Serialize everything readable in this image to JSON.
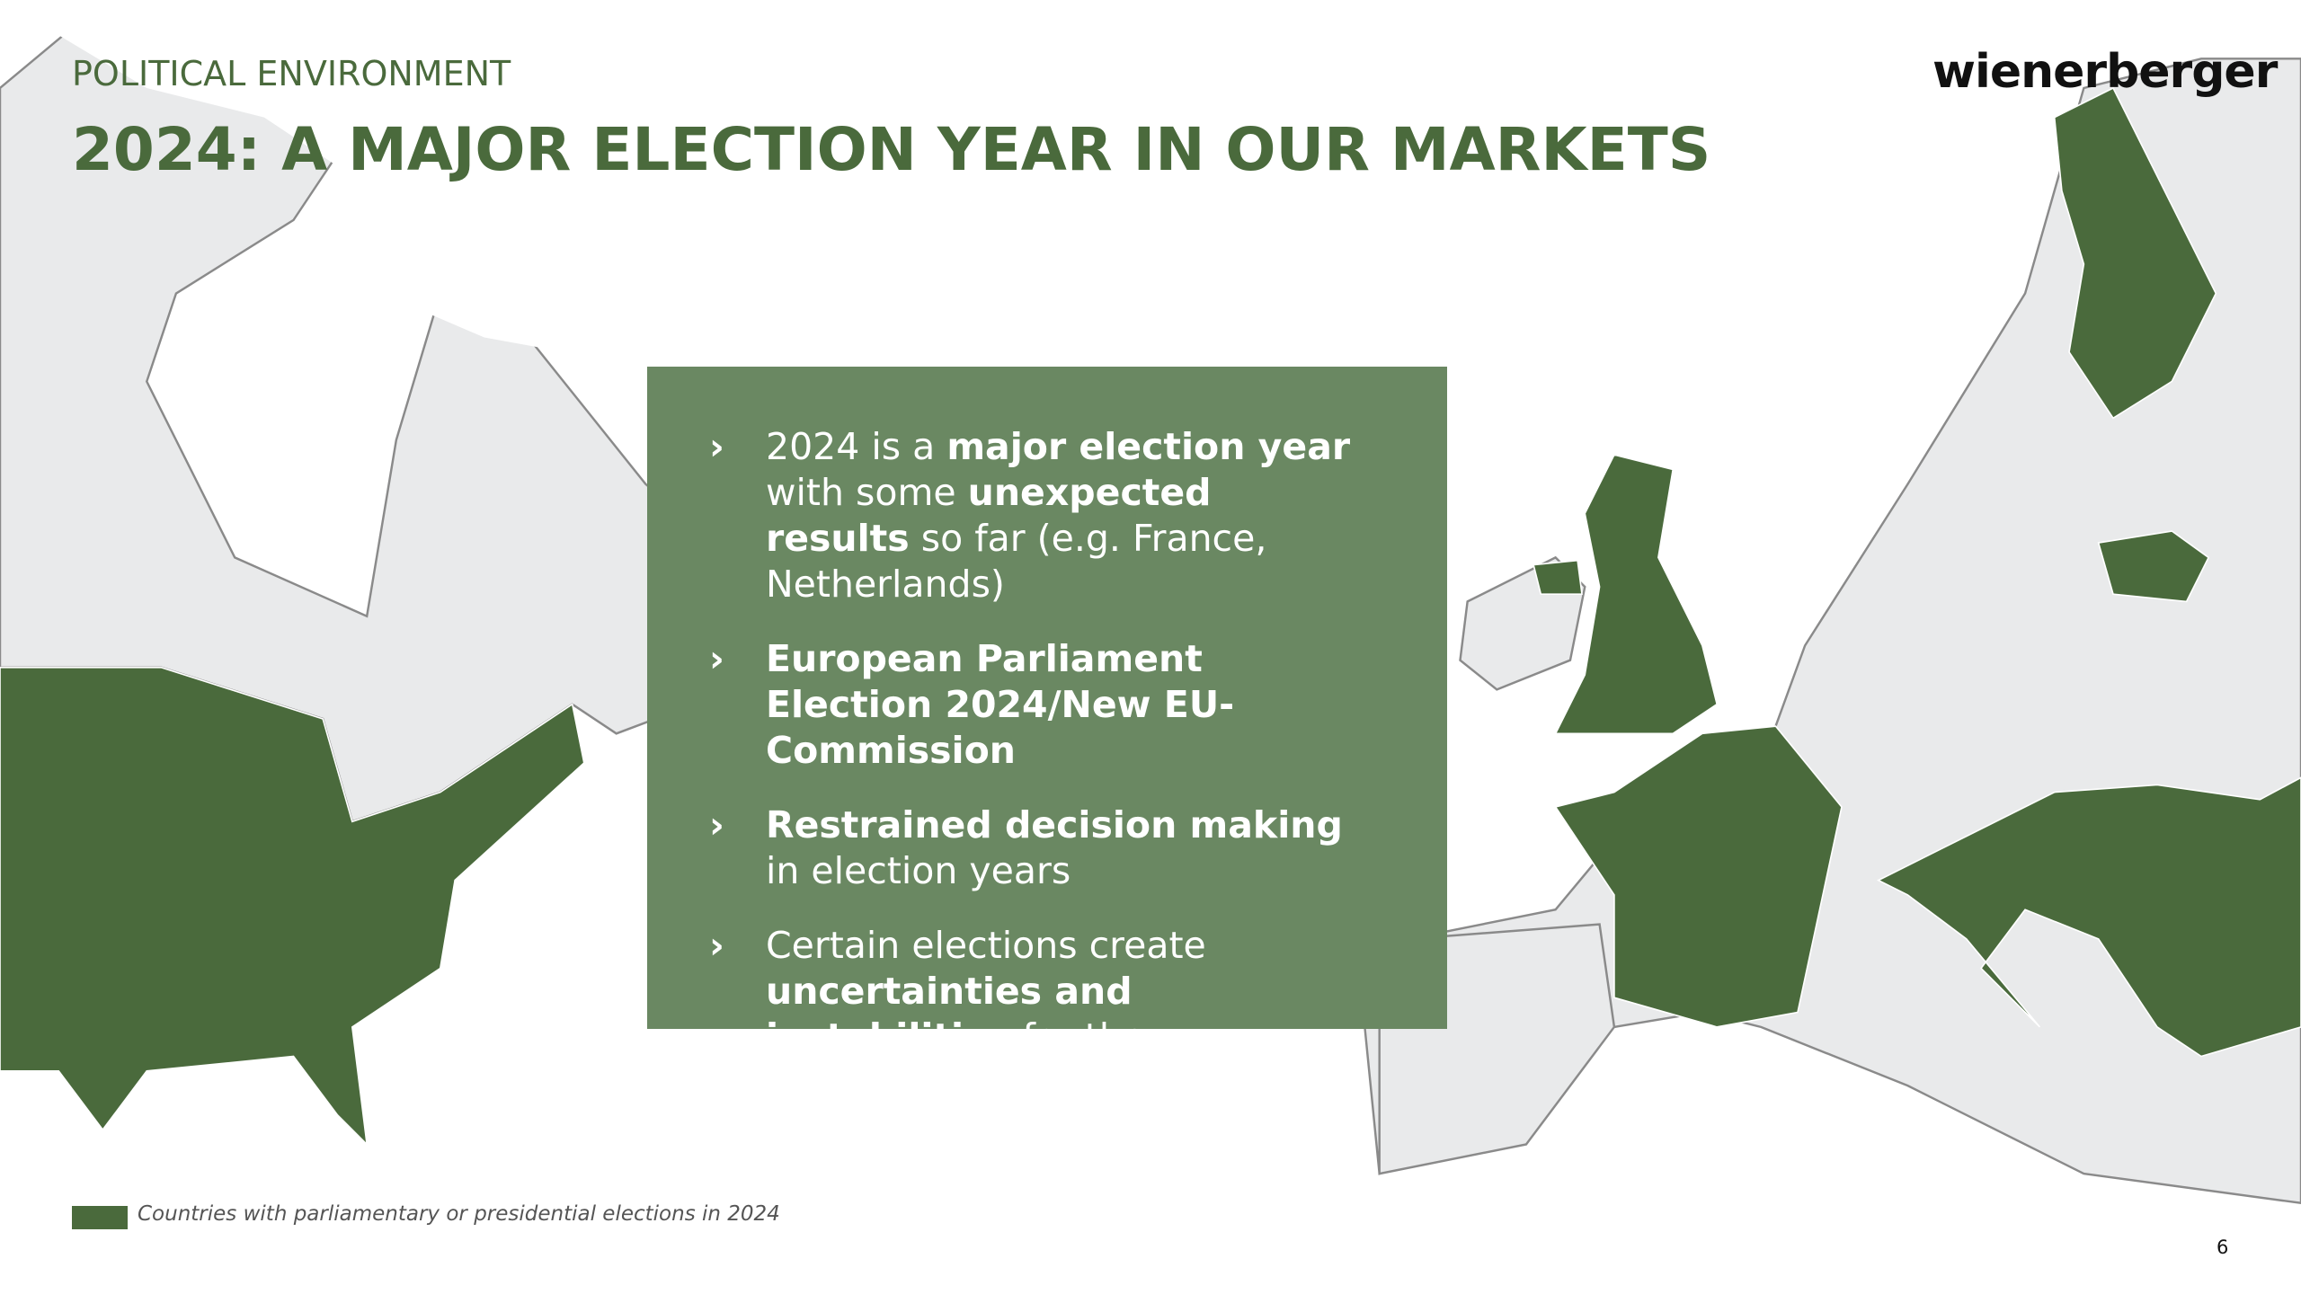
{
  "header": {
    "section": "POLITICAL ENVIRONMENT",
    "title": "2024: A MAJOR ELECTION YEAR IN OUR MARKETS",
    "logo": "wienerberger"
  },
  "bullets": [
    {
      "segments": [
        {
          "text": "2024 is a ",
          "bold": false
        },
        {
          "text": "major election year",
          "bold": true
        },
        {
          "text": " with some ",
          "bold": false
        },
        {
          "text": "unexpected results",
          "bold": true
        },
        {
          "text": " so far (e.g. France, Netherlands)",
          "bold": false
        }
      ]
    },
    {
      "segments": [
        {
          "text": "European Parliament Election 2024/New EU-Commission",
          "bold": true
        }
      ]
    },
    {
      "segments": [
        {
          "text": "Restrained decision making",
          "bold": true
        },
        {
          "text": " in election years",
          "bold": false
        }
      ]
    },
    {
      "segments": [
        {
          "text": "Certain elections create ",
          "bold": false
        },
        {
          "text": "uncertainties and instabilities",
          "bold": true
        },
        {
          "text": " for the construction sector",
          "bold": false
        }
      ]
    }
  ],
  "legend": {
    "text": "Countries with parliamentary or presidential elections in 2024",
    "color": "#4a6a3c"
  },
  "page_number": "6"
}
